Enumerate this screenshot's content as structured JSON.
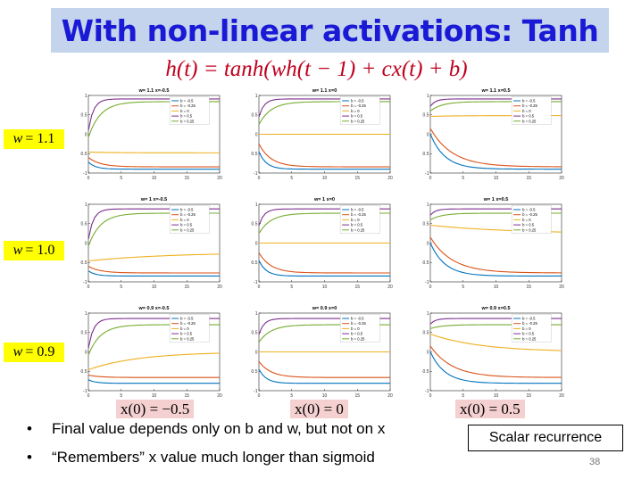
{
  "title": "With non-linear activations: Tanh",
  "equation": "h(t) = tanh(wh(t − 1) + cx(t) + b)",
  "row_labels": [
    {
      "var": "w",
      "text": "= 1.1"
    },
    {
      "var": "w",
      "text": "= 1.0"
    },
    {
      "var": "w",
      "text": "= 0.9"
    }
  ],
  "column_labels": [
    "x(0) = −0.5",
    "x(0) = 0",
    "x(0) = 0.5"
  ],
  "bullets": [
    "Final value depends only on b and w, but not on x",
    "“Remembers” x value much longer than sigmoid"
  ],
  "box_label": "Scalar recurrence",
  "page_number": "38",
  "colors": {
    "title_text": "#1a1ad6",
    "title_bg": "#c4d4ec",
    "equation": "#c0001e",
    "row_label_bg": "#ffff00",
    "col_label_bg": "#f5d0d0"
  },
  "chart_data": {
    "type": "line",
    "rows": 3,
    "columns": 3,
    "legend": [
      "b = -0.5",
      "b = -0.25",
      "b = 0",
      "b = 0.5",
      "b = 0.25"
    ],
    "series_colors": [
      "#0072bd",
      "#d95319",
      "#edb120",
      "#7e2f8e",
      "#77ac30"
    ],
    "xlim": [
      0,
      20
    ],
    "ylim": [
      -1,
      1
    ],
    "xticks": [
      0,
      5,
      10,
      15,
      20
    ],
    "yticks": [
      1,
      0.5,
      0,
      -0.5,
      -1
    ],
    "subplots": [
      {
        "title": "w= 1.1 x=-0.5",
        "w": 1.1,
        "x0": -0.5,
        "series": [
          {
            "name": "b = -0.5",
            "start": -0.72,
            "end": -0.9,
            "rate": 0.9
          },
          {
            "name": "b = -0.25",
            "start": -0.6,
            "end": -0.84,
            "rate": 0.55
          },
          {
            "name": "b = 0",
            "start": -0.46,
            "end": -0.48,
            "rate": 0.25
          },
          {
            "name": "b = 0.5",
            "start": 0.1,
            "end": 0.91,
            "rate": 1.3
          },
          {
            "name": "b = 0.25",
            "start": -0.08,
            "end": 0.84,
            "rate": 0.55
          }
        ]
      },
      {
        "title": "w= 1.1 x=0",
        "w": 1.1,
        "x0": 0,
        "series": [
          {
            "name": "b = -0.5",
            "start": -0.45,
            "end": -0.9,
            "rate": 0.9
          },
          {
            "name": "b = -0.25",
            "start": -0.25,
            "end": -0.84,
            "rate": 0.55
          },
          {
            "name": "b = 0",
            "start": 0,
            "end": 0,
            "rate": 0.5
          },
          {
            "name": "b = 0.5",
            "start": 0.45,
            "end": 0.91,
            "rate": 1.3
          },
          {
            "name": "b = 0.25",
            "start": 0.25,
            "end": 0.84,
            "rate": 0.55
          }
        ]
      },
      {
        "title": "w= 1.1 x=0.5",
        "w": 1.1,
        "x0": 0.5,
        "series": [
          {
            "name": "b = -0.5",
            "start": 0.0,
            "end": -0.9,
            "rate": 0.45
          },
          {
            "name": "b = -0.25",
            "start": 0.15,
            "end": -0.84,
            "rate": 0.3
          },
          {
            "name": "b = 0",
            "start": 0.46,
            "end": 0.48,
            "rate": 0.25
          },
          {
            "name": "b = 0.5",
            "start": 0.72,
            "end": 0.91,
            "rate": 1.3
          },
          {
            "name": "b = 0.25",
            "start": 0.6,
            "end": 0.84,
            "rate": 0.55
          }
        ]
      },
      {
        "title": "w= 1 x=-0.5",
        "w": 1.0,
        "x0": -0.5,
        "series": [
          {
            "name": "b = -0.5",
            "start": -0.72,
            "end": -0.85,
            "rate": 0.9
          },
          {
            "name": "b = -0.25",
            "start": -0.6,
            "end": -0.77,
            "rate": 0.55
          },
          {
            "name": "b = 0",
            "start": -0.46,
            "end": -0.24,
            "rate": 0.08
          },
          {
            "name": "b = 0.5",
            "start": 0.1,
            "end": 0.88,
            "rate": 1.3
          },
          {
            "name": "b = 0.25",
            "start": -0.08,
            "end": 0.77,
            "rate": 0.55
          }
        ]
      },
      {
        "title": "w= 1 x=0",
        "w": 1.0,
        "x0": 0,
        "series": [
          {
            "name": "b = -0.5",
            "start": -0.45,
            "end": -0.85,
            "rate": 0.9
          },
          {
            "name": "b = -0.25",
            "start": -0.25,
            "end": -0.77,
            "rate": 0.55
          },
          {
            "name": "b = 0",
            "start": 0,
            "end": 0,
            "rate": 0.5
          },
          {
            "name": "b = 0.5",
            "start": 0.45,
            "end": 0.88,
            "rate": 1.3
          },
          {
            "name": "b = 0.25",
            "start": 0.25,
            "end": 0.77,
            "rate": 0.55
          }
        ]
      },
      {
        "title": "w= 1 x=0.5",
        "w": 1.0,
        "x0": 0.5,
        "series": [
          {
            "name": "b = -0.5",
            "start": 0.0,
            "end": -0.85,
            "rate": 0.45
          },
          {
            "name": "b = -0.25",
            "start": 0.15,
            "end": -0.77,
            "rate": 0.3
          },
          {
            "name": "b = 0",
            "start": 0.46,
            "end": 0.24,
            "rate": 0.08
          },
          {
            "name": "b = 0.5",
            "start": 0.72,
            "end": 0.88,
            "rate": 1.3
          },
          {
            "name": "b = 0.25",
            "start": 0.6,
            "end": 0.77,
            "rate": 0.55
          }
        ]
      },
      {
        "title": "w= 0.9 x=-0.5",
        "w": 0.9,
        "x0": -0.5,
        "series": [
          {
            "name": "b = -0.5",
            "start": -0.72,
            "end": -0.81,
            "rate": 0.9
          },
          {
            "name": "b = -0.25",
            "start": -0.6,
            "end": -0.66,
            "rate": 0.55
          },
          {
            "name": "b = 0",
            "start": -0.46,
            "end": 0.0,
            "rate": 0.13
          },
          {
            "name": "b = 0.5",
            "start": 0.1,
            "end": 0.86,
            "rate": 1.3
          },
          {
            "name": "b = 0.25",
            "start": -0.08,
            "end": 0.7,
            "rate": 0.55
          }
        ]
      },
      {
        "title": "w= 0.9 x=0",
        "w": 0.9,
        "x0": 0,
        "series": [
          {
            "name": "b = -0.5",
            "start": -0.45,
            "end": -0.81,
            "rate": 0.9
          },
          {
            "name": "b = -0.25",
            "start": -0.25,
            "end": -0.66,
            "rate": 0.55
          },
          {
            "name": "b = 0",
            "start": 0,
            "end": 0,
            "rate": 0.5
          },
          {
            "name": "b = 0.5",
            "start": 0.45,
            "end": 0.86,
            "rate": 1.3
          },
          {
            "name": "b = 0.25",
            "start": 0.25,
            "end": 0.7,
            "rate": 0.55
          }
        ]
      },
      {
        "title": "w= 0.9 x=0.5",
        "w": 0.9,
        "x0": 0.5,
        "series": [
          {
            "name": "b = -0.5",
            "start": 0.0,
            "end": -0.81,
            "rate": 0.45
          },
          {
            "name": "b = -0.25",
            "start": 0.15,
            "end": -0.66,
            "rate": 0.3
          },
          {
            "name": "b = 0",
            "start": 0.46,
            "end": 0.0,
            "rate": 0.13
          },
          {
            "name": "b = 0.5",
            "start": 0.72,
            "end": 0.86,
            "rate": 1.3
          },
          {
            "name": "b = 0.25",
            "start": 0.6,
            "end": 0.7,
            "rate": 0.55
          }
        ]
      }
    ]
  }
}
